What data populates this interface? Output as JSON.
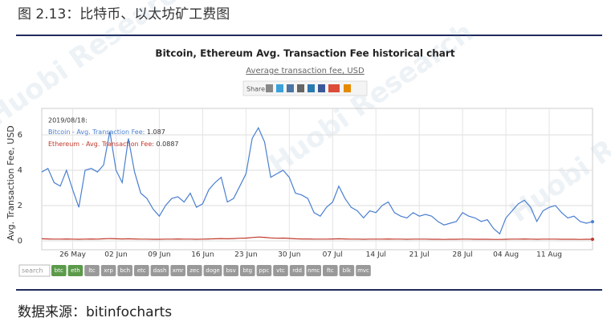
{
  "header": {
    "title": "图 2.13：比特币、以太坊矿工费图"
  },
  "watermark": "Huobi Research",
  "chart_data": {
    "type": "line",
    "title": "Bitcoin, Ethereum Avg. Transaction Fee historical chart",
    "subtitle": "Average transaction fee, USD",
    "share_label": "Share:",
    "y_label": "Avg. Transaction Fee, USD",
    "tooltip_date": "2019/08/18:",
    "categories": [
      null,
      null,
      null,
      null,
      null,
      "26 May",
      null,
      null,
      null,
      null,
      null,
      null,
      "02 Jun",
      null,
      null,
      null,
      null,
      null,
      null,
      "09 Jun",
      null,
      null,
      null,
      null,
      null,
      null,
      "16 Jun",
      null,
      null,
      null,
      null,
      null,
      null,
      "23 Jun",
      null,
      null,
      null,
      null,
      null,
      null,
      "30 Jun",
      null,
      null,
      null,
      null,
      null,
      null,
      "07 Jul",
      null,
      null,
      null,
      null,
      null,
      null,
      "14 Jul",
      null,
      null,
      null,
      null,
      null,
      null,
      "21 Jul",
      null,
      null,
      null,
      null,
      null,
      null,
      "28 Jul",
      null,
      null,
      null,
      null,
      null,
      null,
      "04 Aug",
      null,
      null,
      null,
      null,
      null,
      null,
      "11 Aug",
      null,
      null,
      null,
      null,
      null,
      null,
      null
    ],
    "series": [
      {
        "name": "Bitcoin - Avg. Transaction Fee",
        "color": "#4a7fd0",
        "values": [
          3.9,
          4.1,
          3.3,
          3.1,
          4.0,
          2.9,
          1.9,
          4.0,
          4.1,
          3.9,
          4.3,
          6.2,
          4.0,
          3.3,
          5.8,
          3.9,
          2.7,
          2.4,
          1.8,
          1.4,
          2.0,
          2.4,
          2.5,
          2.2,
          2.7,
          1.9,
          2.1,
          2.9,
          3.3,
          3.6,
          2.2,
          2.4,
          3.1,
          3.8,
          5.8,
          6.4,
          5.6,
          3.6,
          3.8,
          4.0,
          3.6,
          2.7,
          2.6,
          2.4,
          1.6,
          1.4,
          1.9,
          2.2,
          3.1,
          2.4,
          1.9,
          1.7,
          1.3,
          1.7,
          1.6,
          2.0,
          2.2,
          1.6,
          1.4,
          1.3,
          1.6,
          1.4,
          1.5,
          1.4,
          1.1,
          0.9,
          1.0,
          1.1,
          1.6,
          1.4,
          1.3,
          1.1,
          1.2,
          0.7,
          0.4,
          1.3,
          1.7,
          2.1,
          2.3,
          1.9,
          1.1,
          1.7,
          1.9,
          2.0,
          1.6,
          1.3,
          1.4,
          1.1,
          1.0,
          1.087
        ]
      },
      {
        "name": "Ethereum - Avg. Transaction Fee",
        "color": "#c0392b",
        "values": [
          0.12,
          0.11,
          0.1,
          0.1,
          0.11,
          0.1,
          0.09,
          0.1,
          0.11,
          0.1,
          0.12,
          0.13,
          0.12,
          0.11,
          0.12,
          0.11,
          0.1,
          0.1,
          0.09,
          0.09,
          0.1,
          0.1,
          0.11,
          0.1,
          0.1,
          0.09,
          0.1,
          0.11,
          0.12,
          0.13,
          0.12,
          0.13,
          0.15,
          0.16,
          0.19,
          0.22,
          0.2,
          0.17,
          0.15,
          0.16,
          0.14,
          0.12,
          0.11,
          0.11,
          0.1,
          0.1,
          0.1,
          0.11,
          0.12,
          0.11,
          0.1,
          0.1,
          0.09,
          0.1,
          0.1,
          0.1,
          0.11,
          0.1,
          0.1,
          0.09,
          0.1,
          0.1,
          0.1,
          0.09,
          0.09,
          0.08,
          0.09,
          0.09,
          0.1,
          0.1,
          0.09,
          0.09,
          0.09,
          0.08,
          0.08,
          0.09,
          0.1,
          0.1,
          0.11,
          0.1,
          0.09,
          0.1,
          0.1,
          0.1,
          0.09,
          0.09,
          0.09,
          0.08,
          0.09,
          0.0887
        ]
      }
    ],
    "ylim": [
      -0.5,
      7.5
    ],
    "yticks": [
      0,
      2,
      4,
      6
    ],
    "grid": true,
    "search_placeholder": "search",
    "coins": [
      "btc",
      "eth",
      "ltc",
      "xrp",
      "bch",
      "etc",
      "dash",
      "xmr",
      "zec",
      "doge",
      "bsv",
      "btg",
      "ppc",
      "vtc",
      "rdd",
      "nmc",
      "ftc",
      "blk",
      "mvc"
    ],
    "active_coins": [
      0,
      1
    ]
  },
  "footer": {
    "source": "数据来源：bitinfocharts"
  }
}
